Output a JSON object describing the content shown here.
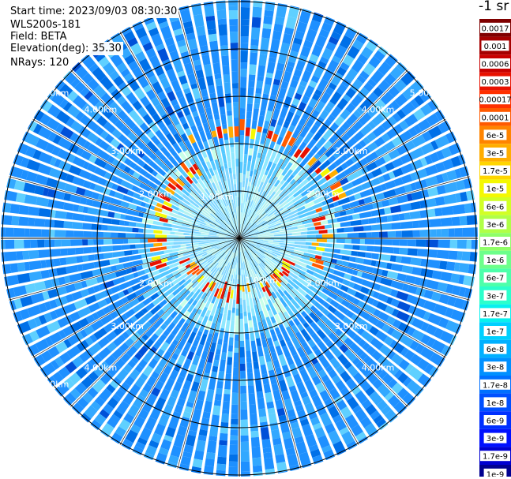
{
  "info": {
    "start_time": "Start time: 2023/09/03 08:30:30",
    "device": "WLS200s-181",
    "field": "Field: BETA",
    "elevation": "Elevation(deg): 35.30",
    "nrays": "NRays: 120"
  },
  "chart_data": {
    "type": "heatmap",
    "projection": "polar (PPI scan)",
    "field": "BETA",
    "n_rays": 120,
    "range_ring_labels": [
      "1.00km",
      "2.00km",
      "3.00km",
      "4.00km",
      "5.00km"
    ],
    "range_ring_labels_visible": {
      "1.00km": [
        "1.00km",
        "1.00km"
      ],
      "2.00km": [
        "2.00km",
        "2.00km",
        "2.00km",
        "2.00km"
      ],
      "3.00km": [
        "3.00km",
        "3.00km",
        "3.00km",
        "3.00km"
      ],
      "4.00km": [
        "4.00km",
        "4.00km",
        "4.00km",
        "4.00km"
      ],
      "5.00km": [
        "5.00km",
        "5.00km",
        "5.00km"
      ]
    },
    "colorbar": {
      "unit_label": "-1 sr",
      "tick_labels": [
        "0.0017",
        "0.001",
        "0.0006",
        "0.0003",
        "0.00017",
        "0.0001",
        "6e-5",
        "3e-5",
        "1.7e-5",
        "1e-5",
        "6e-6",
        "3e-6",
        "1.7e-6",
        "1e-6",
        "6e-7",
        "3e-7",
        "1.7e-7",
        "1e-7",
        "6e-8",
        "3e-8",
        "1.7e-8",
        "1e-8",
        "6e-9",
        "3e-9",
        "1.7e-9",
        "1e-9"
      ],
      "colors": [
        "#7f0000",
        "#a50000",
        "#c80000",
        "#e81100",
        "#ff3000",
        "#ff5a00",
        "#ff8400",
        "#ffad00",
        "#ffd500",
        "#f4f802",
        "#d1ff26",
        "#b0ff47",
        "#8fff68",
        "#6dff8a",
        "#4dffaa",
        "#2bffcc",
        "#08f0ee",
        "#00d0ff",
        "#00b0ff",
        "#0090ff",
        "#0070ff",
        "#0050ff",
        "#0030ff",
        "#0010ff",
        "#0000d0",
        "#000090"
      ],
      "scale": "log"
    }
  }
}
